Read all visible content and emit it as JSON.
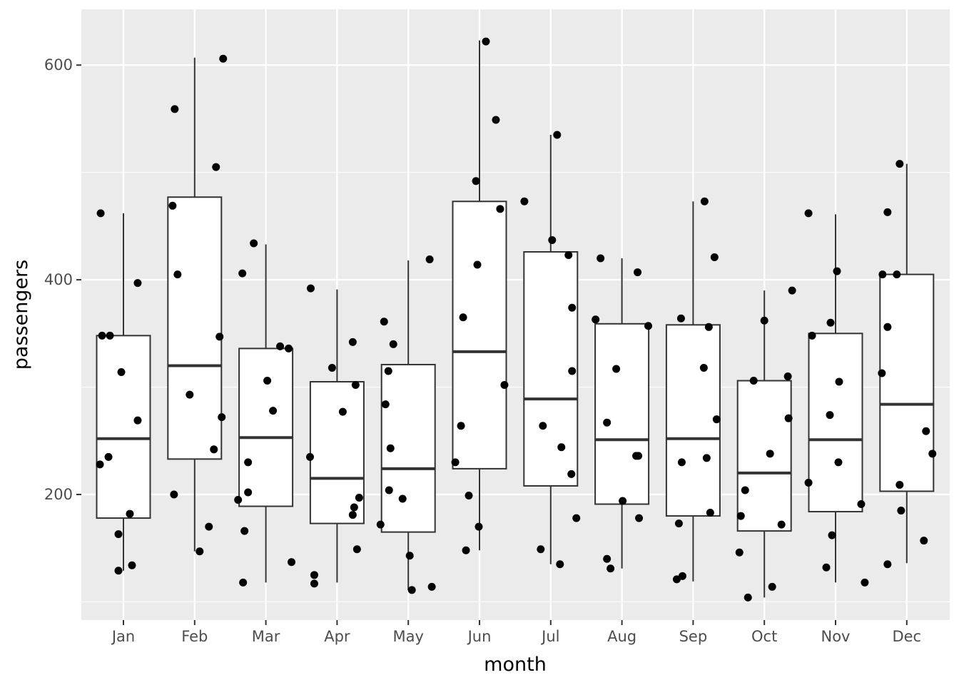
{
  "chart_data": {
    "type": "boxplot",
    "title": "",
    "xlabel": "month",
    "ylabel": "passengers",
    "ylim": [
      83,
      652
    ],
    "yticks": [
      200,
      400,
      600
    ],
    "grid": true,
    "legend": "none",
    "colors": {
      "panel": "#ebebeb",
      "grid_major": "#ffffff",
      "box_fill": "#ffffff",
      "box_stroke": "#333333",
      "point": "#000000",
      "tick_text": "#4d4d4d"
    },
    "categories": [
      "Jan",
      "Feb",
      "Mar",
      "Apr",
      "May",
      "Jun",
      "Jul",
      "Aug",
      "Sep",
      "Oct",
      "Nov",
      "Dec"
    ],
    "boxes": [
      {
        "month": "Jan",
        "lower": 129,
        "q1": 178,
        "median": 252,
        "q3": 348,
        "upper": 462
      },
      {
        "month": "Feb",
        "lower": 147,
        "q1": 233,
        "median": 320,
        "q3": 477,
        "upper": 607
      },
      {
        "month": "Mar",
        "lower": 118,
        "q1": 189,
        "median": 253,
        "q3": 336,
        "upper": 433
      },
      {
        "month": "Apr",
        "lower": 118,
        "q1": 173,
        "median": 215,
        "q3": 305,
        "upper": 391
      },
      {
        "month": "May",
        "lower": 111,
        "q1": 165,
        "median": 224,
        "q3": 321,
        "upper": 418
      },
      {
        "month": "Jun",
        "lower": 148,
        "q1": 224,
        "median": 333,
        "q3": 473,
        "upper": 623
      },
      {
        "month": "Jul",
        "lower": 135,
        "q1": 208,
        "median": 289,
        "q3": 426,
        "upper": 535
      },
      {
        "month": "Aug",
        "lower": 131,
        "q1": 191,
        "median": 251,
        "q3": 359,
        "upper": 420
      },
      {
        "month": "Sep",
        "lower": 119,
        "q1": 180,
        "median": 252,
        "q3": 358,
        "upper": 473
      },
      {
        "month": "Oct",
        "lower": 104,
        "q1": 166,
        "median": 220,
        "q3": 306,
        "upper": 390
      },
      {
        "month": "Nov",
        "lower": 118,
        "q1": 184,
        "median": 251,
        "q3": 350,
        "upper": 461
      },
      {
        "month": "Dec",
        "lower": 136,
        "q1": 203,
        "median": 284,
        "q3": 405,
        "upper": 508
      }
    ],
    "points": [
      {
        "month": "Jan",
        "jitter": -0.33,
        "y": 228
      },
      {
        "month": "Jan",
        "jitter": -0.32,
        "y": 462
      },
      {
        "month": "Jan",
        "jitter": -0.3,
        "y": 348
      },
      {
        "month": "Jan",
        "jitter": -0.21,
        "y": 235
      },
      {
        "month": "Jan",
        "jitter": -0.19,
        "y": 348
      },
      {
        "month": "Jan",
        "jitter": -0.07,
        "y": 163
      },
      {
        "month": "Jan",
        "jitter": -0.07,
        "y": 129
      },
      {
        "month": "Jan",
        "jitter": -0.03,
        "y": 314
      },
      {
        "month": "Jan",
        "jitter": 0.09,
        "y": 182
      },
      {
        "month": "Jan",
        "jitter": 0.12,
        "y": 134
      },
      {
        "month": "Jan",
        "jitter": 0.2,
        "y": 269
      },
      {
        "month": "Jan",
        "jitter": 0.2,
        "y": 397
      },
      {
        "month": "Feb",
        "jitter": -0.31,
        "y": 469
      },
      {
        "month": "Feb",
        "jitter": -0.29,
        "y": 200
      },
      {
        "month": "Feb",
        "jitter": -0.28,
        "y": 559
      },
      {
        "month": "Feb",
        "jitter": -0.24,
        "y": 405
      },
      {
        "month": "Feb",
        "jitter": -0.07,
        "y": 293
      },
      {
        "month": "Feb",
        "jitter": 0.07,
        "y": 147
      },
      {
        "month": "Feb",
        "jitter": 0.2,
        "y": 170
      },
      {
        "month": "Feb",
        "jitter": 0.27,
        "y": 242
      },
      {
        "month": "Feb",
        "jitter": 0.3,
        "y": 505
      },
      {
        "month": "Feb",
        "jitter": 0.35,
        "y": 347
      },
      {
        "month": "Feb",
        "jitter": 0.38,
        "y": 272
      },
      {
        "month": "Feb",
        "jitter": 0.4,
        "y": 606
      },
      {
        "month": "Mar",
        "jitter": -0.39,
        "y": 195
      },
      {
        "month": "Mar",
        "jitter": -0.33,
        "y": 406
      },
      {
        "month": "Mar",
        "jitter": -0.32,
        "y": 118
      },
      {
        "month": "Mar",
        "jitter": -0.3,
        "y": 166
      },
      {
        "month": "Mar",
        "jitter": -0.25,
        "y": 230
      },
      {
        "month": "Mar",
        "jitter": -0.25,
        "y": 202
      },
      {
        "month": "Mar",
        "jitter": -0.17,
        "y": 434
      },
      {
        "month": "Mar",
        "jitter": 0.02,
        "y": 306
      },
      {
        "month": "Mar",
        "jitter": 0.1,
        "y": 278
      },
      {
        "month": "Mar",
        "jitter": 0.2,
        "y": 338
      },
      {
        "month": "Mar",
        "jitter": 0.32,
        "y": 336
      },
      {
        "month": "Mar",
        "jitter": 0.36,
        "y": 137
      },
      {
        "month": "Apr",
        "jitter": -0.38,
        "y": 235
      },
      {
        "month": "Apr",
        "jitter": -0.37,
        "y": 392
      },
      {
        "month": "Apr",
        "jitter": -0.32,
        "y": 125
      },
      {
        "month": "Apr",
        "jitter": -0.32,
        "y": 117
      },
      {
        "month": "Apr",
        "jitter": -0.07,
        "y": 318
      },
      {
        "month": "Apr",
        "jitter": 0.08,
        "y": 277
      },
      {
        "month": "Apr",
        "jitter": 0.22,
        "y": 342
      },
      {
        "month": "Apr",
        "jitter": 0.22,
        "y": 181
      },
      {
        "month": "Apr",
        "jitter": 0.24,
        "y": 188
      },
      {
        "month": "Apr",
        "jitter": 0.26,
        "y": 302
      },
      {
        "month": "Apr",
        "jitter": 0.28,
        "y": 149
      },
      {
        "month": "Apr",
        "jitter": 0.31,
        "y": 197
      },
      {
        "month": "May",
        "jitter": -0.39,
        "y": 172
      },
      {
        "month": "May",
        "jitter": -0.34,
        "y": 361
      },
      {
        "month": "May",
        "jitter": -0.32,
        "y": 284
      },
      {
        "month": "May",
        "jitter": -0.28,
        "y": 315
      },
      {
        "month": "May",
        "jitter": -0.27,
        "y": 204
      },
      {
        "month": "May",
        "jitter": -0.25,
        "y": 243
      },
      {
        "month": "May",
        "jitter": -0.21,
        "y": 340
      },
      {
        "month": "May",
        "jitter": -0.08,
        "y": 196
      },
      {
        "month": "May",
        "jitter": 0.02,
        "y": 143
      },
      {
        "month": "May",
        "jitter": 0.05,
        "y": 111
      },
      {
        "month": "May",
        "jitter": 0.3,
        "y": 419
      },
      {
        "month": "May",
        "jitter": 0.33,
        "y": 114
      },
      {
        "month": "Jun",
        "jitter": -0.34,
        "y": 230
      },
      {
        "month": "Jun",
        "jitter": -0.26,
        "y": 264
      },
      {
        "month": "Jun",
        "jitter": -0.23,
        "y": 365
      },
      {
        "month": "Jun",
        "jitter": -0.19,
        "y": 148
      },
      {
        "month": "Jun",
        "jitter": -0.15,
        "y": 199
      },
      {
        "month": "Jun",
        "jitter": -0.05,
        "y": 492
      },
      {
        "month": "Jun",
        "jitter": -0.03,
        "y": 414
      },
      {
        "month": "Jun",
        "jitter": -0.01,
        "y": 170
      },
      {
        "month": "Jun",
        "jitter": 0.09,
        "y": 622
      },
      {
        "month": "Jun",
        "jitter": 0.23,
        "y": 549
      },
      {
        "month": "Jun",
        "jitter": 0.29,
        "y": 466
      },
      {
        "month": "Jun",
        "jitter": 0.35,
        "y": 302
      },
      {
        "month": "Jul",
        "jitter": -0.37,
        "y": 473
      },
      {
        "month": "Jul",
        "jitter": -0.14,
        "y": 149
      },
      {
        "month": "Jul",
        "jitter": -0.11,
        "y": 264
      },
      {
        "month": "Jul",
        "jitter": 0.02,
        "y": 437
      },
      {
        "month": "Jul",
        "jitter": 0.09,
        "y": 535
      },
      {
        "month": "Jul",
        "jitter": 0.13,
        "y": 135
      },
      {
        "month": "Jul",
        "jitter": 0.15,
        "y": 244
      },
      {
        "month": "Jul",
        "jitter": 0.25,
        "y": 423
      },
      {
        "month": "Jul",
        "jitter": 0.29,
        "y": 219
      },
      {
        "month": "Jul",
        "jitter": 0.3,
        "y": 374
      },
      {
        "month": "Jul",
        "jitter": 0.3,
        "y": 315
      },
      {
        "month": "Jul",
        "jitter": 0.36,
        "y": 178
      },
      {
        "month": "Aug",
        "jitter": -0.37,
        "y": 363
      },
      {
        "month": "Aug",
        "jitter": -0.3,
        "y": 420
      },
      {
        "month": "Aug",
        "jitter": -0.21,
        "y": 267
      },
      {
        "month": "Aug",
        "jitter": -0.21,
        "y": 140
      },
      {
        "month": "Aug",
        "jitter": -0.16,
        "y": 131
      },
      {
        "month": "Aug",
        "jitter": -0.08,
        "y": 317
      },
      {
        "month": "Aug",
        "jitter": 0.01,
        "y": 194
      },
      {
        "month": "Aug",
        "jitter": 0.2,
        "y": 236
      },
      {
        "month": "Aug",
        "jitter": 0.22,
        "y": 407
      },
      {
        "month": "Aug",
        "jitter": 0.23,
        "y": 236
      },
      {
        "month": "Aug",
        "jitter": 0.24,
        "y": 178
      },
      {
        "month": "Aug",
        "jitter": 0.37,
        "y": 357
      },
      {
        "month": "Sep",
        "jitter": -0.23,
        "y": 121
      },
      {
        "month": "Sep",
        "jitter": -0.2,
        "y": 173
      },
      {
        "month": "Sep",
        "jitter": -0.17,
        "y": 364
      },
      {
        "month": "Sep",
        "jitter": -0.16,
        "y": 230
      },
      {
        "month": "Sep",
        "jitter": -0.15,
        "y": 124
      },
      {
        "month": "Sep",
        "jitter": 0.15,
        "y": 318
      },
      {
        "month": "Sep",
        "jitter": 0.16,
        "y": 473
      },
      {
        "month": "Sep",
        "jitter": 0.19,
        "y": 234
      },
      {
        "month": "Sep",
        "jitter": 0.22,
        "y": 356
      },
      {
        "month": "Sep",
        "jitter": 0.24,
        "y": 183
      },
      {
        "month": "Sep",
        "jitter": 0.3,
        "y": 421
      },
      {
        "month": "Sep",
        "jitter": 0.33,
        "y": 270
      },
      {
        "month": "Oct",
        "jitter": -0.35,
        "y": 146
      },
      {
        "month": "Oct",
        "jitter": -0.33,
        "y": 180
      },
      {
        "month": "Oct",
        "jitter": -0.27,
        "y": 204
      },
      {
        "month": "Oct",
        "jitter": -0.23,
        "y": 104
      },
      {
        "month": "Oct",
        "jitter": -0.15,
        "y": 306
      },
      {
        "month": "Oct",
        "jitter": 0.0,
        "y": 362
      },
      {
        "month": "Oct",
        "jitter": 0.08,
        "y": 238
      },
      {
        "month": "Oct",
        "jitter": 0.11,
        "y": 114
      },
      {
        "month": "Oct",
        "jitter": 0.24,
        "y": 172
      },
      {
        "month": "Oct",
        "jitter": 0.33,
        "y": 310
      },
      {
        "month": "Oct",
        "jitter": 0.34,
        "y": 271
      },
      {
        "month": "Oct",
        "jitter": 0.39,
        "y": 390
      },
      {
        "month": "Nov",
        "jitter": -0.38,
        "y": 211
      },
      {
        "month": "Nov",
        "jitter": -0.38,
        "y": 462
      },
      {
        "month": "Nov",
        "jitter": -0.33,
        "y": 348
      },
      {
        "month": "Nov",
        "jitter": -0.13,
        "y": 132
      },
      {
        "month": "Nov",
        "jitter": -0.08,
        "y": 274
      },
      {
        "month": "Nov",
        "jitter": -0.07,
        "y": 360
      },
      {
        "month": "Nov",
        "jitter": -0.05,
        "y": 162
      },
      {
        "month": "Nov",
        "jitter": 0.02,
        "y": 408
      },
      {
        "month": "Nov",
        "jitter": 0.04,
        "y": 230
      },
      {
        "month": "Nov",
        "jitter": 0.05,
        "y": 305
      },
      {
        "month": "Nov",
        "jitter": 0.36,
        "y": 191
      },
      {
        "month": "Nov",
        "jitter": 0.41,
        "y": 118
      },
      {
        "month": "Dec",
        "jitter": -0.34,
        "y": 405
      },
      {
        "month": "Dec",
        "jitter": -0.35,
        "y": 313
      },
      {
        "month": "Dec",
        "jitter": -0.27,
        "y": 356
      },
      {
        "month": "Dec",
        "jitter": -0.27,
        "y": 135
      },
      {
        "month": "Dec",
        "jitter": -0.27,
        "y": 463
      },
      {
        "month": "Dec",
        "jitter": -0.14,
        "y": 405
      },
      {
        "month": "Dec",
        "jitter": -0.1,
        "y": 209
      },
      {
        "month": "Dec",
        "jitter": -0.1,
        "y": 508
      },
      {
        "month": "Dec",
        "jitter": -0.08,
        "y": 185
      },
      {
        "month": "Dec",
        "jitter": 0.24,
        "y": 157
      },
      {
        "month": "Dec",
        "jitter": 0.27,
        "y": 259
      },
      {
        "month": "Dec",
        "jitter": 0.36,
        "y": 238
      }
    ]
  }
}
